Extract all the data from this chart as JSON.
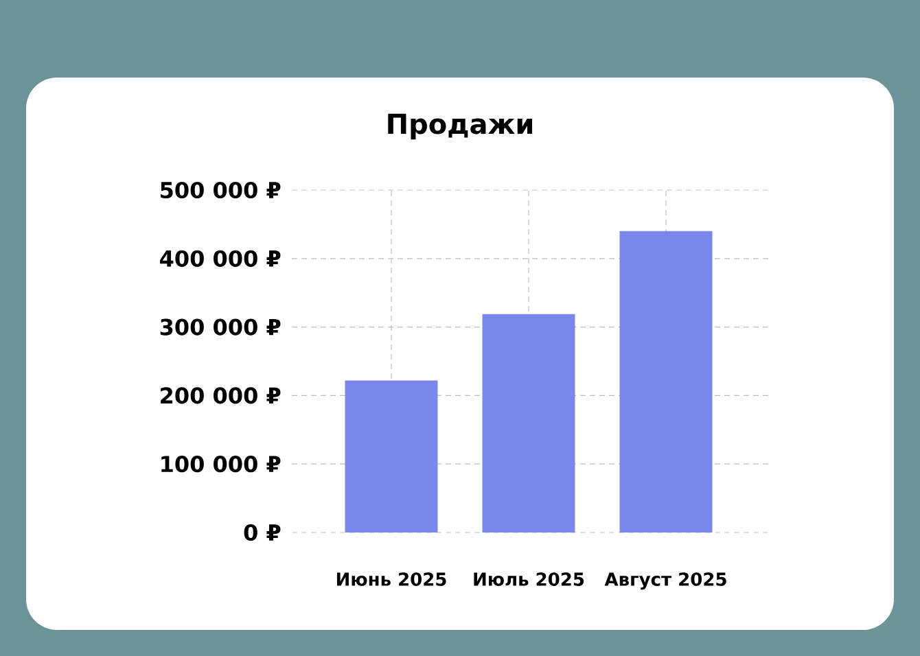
{
  "chart_data": {
    "type": "bar",
    "title": "Продажи",
    "categories": [
      "Июнь 2025",
      "Июль 2025",
      "Август 2025"
    ],
    "values": [
      222000,
      319000,
      440000
    ],
    "color": "#7b87eb",
    "ylim": [
      0,
      500000
    ],
    "yticks": [
      {
        "value": 0,
        "label": "0 ₽"
      },
      {
        "value": 100000,
        "label": "100 000 ₽"
      },
      {
        "value": 200000,
        "label": "200 000 ₽"
      },
      {
        "value": 300000,
        "label": "300 000 ₽"
      },
      {
        "value": 400000,
        "label": "400 000 ₽"
      },
      {
        "value": 500000,
        "label": "500 000 ₽"
      }
    ],
    "grid": true
  }
}
